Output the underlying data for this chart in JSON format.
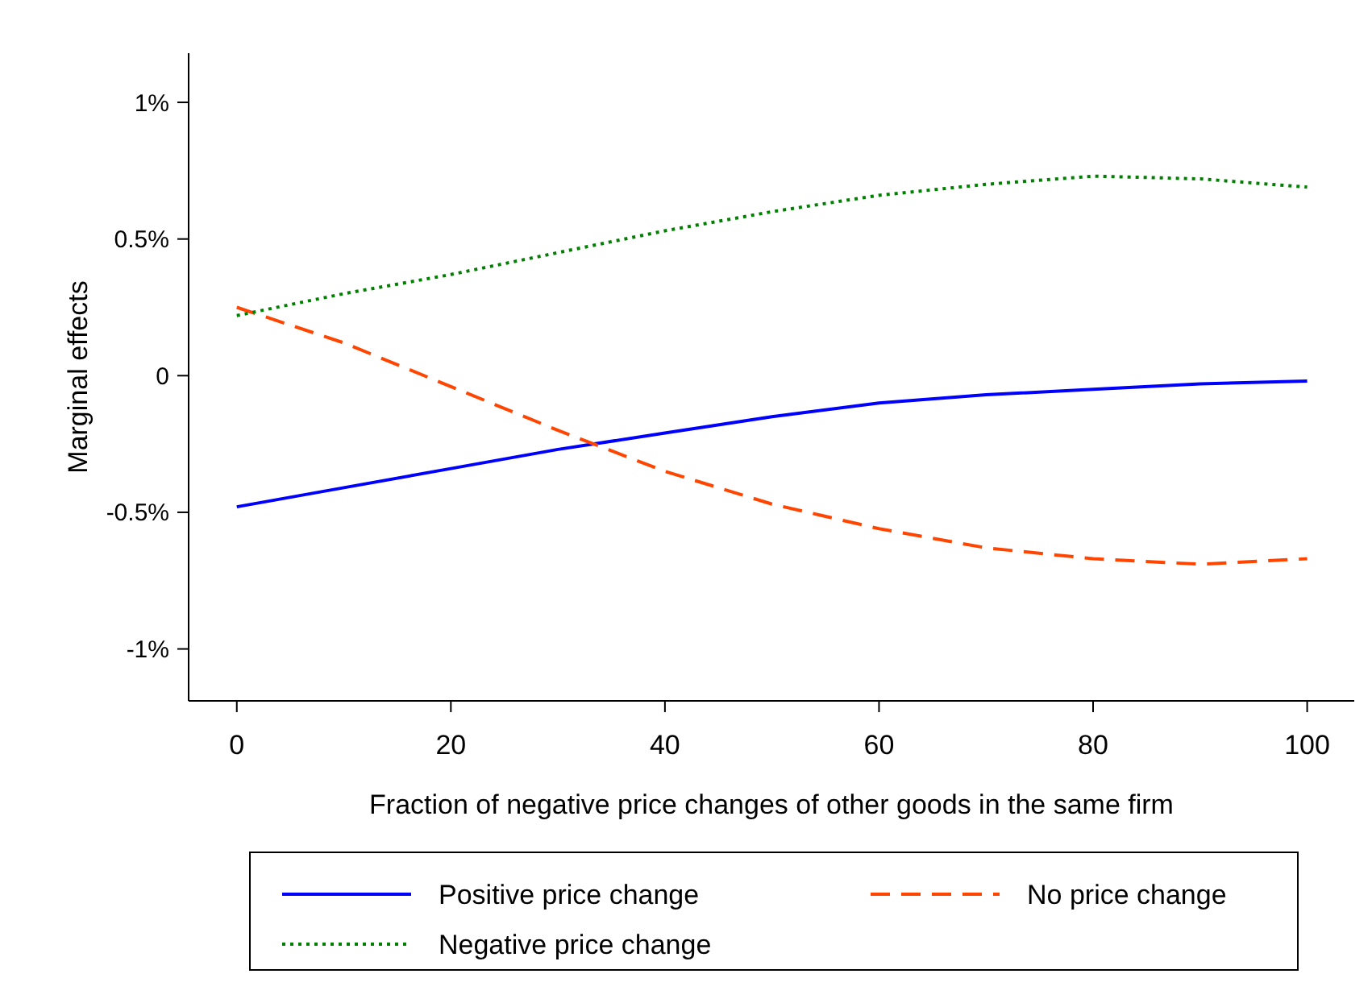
{
  "chart_data": {
    "type": "line",
    "xlabel": "Fraction of negative price changes of other goods in the same firm",
    "ylabel": "Marginal effects",
    "x": [
      0,
      10,
      20,
      30,
      40,
      50,
      60,
      70,
      80,
      90,
      100
    ],
    "xlim": [
      -4.5,
      104.4
    ],
    "xticks": [
      0,
      20,
      40,
      60,
      80,
      100
    ],
    "ylim": [
      -1.19,
      1.18
    ],
    "yticks": [
      {
        "value": -1,
        "label": "-1%"
      },
      {
        "value": -0.5,
        "label": "-0.5%"
      },
      0,
      {
        "value": 0.5,
        "label": "0.5%"
      },
      {
        "value": 1,
        "label": "1%"
      }
    ],
    "grid": false,
    "legend": "bottom",
    "marker": "none",
    "series": [
      {
        "name": "Positive price change",
        "color": "#0000ff",
        "line_style": "solid",
        "values": [
          -0.48,
          -0.41,
          -0.34,
          -0.27,
          -0.21,
          -0.15,
          -0.1,
          -0.07,
          -0.05,
          -0.03,
          -0.02
        ]
      },
      {
        "name": "No price change",
        "color": "#ff4500",
        "line_style": "dashed",
        "values": [
          0.25,
          0.12,
          -0.04,
          -0.2,
          -0.35,
          -0.47,
          -0.56,
          -0.63,
          -0.67,
          -0.69,
          -0.67
        ]
      },
      {
        "name": "Negative price change",
        "color": "#008000",
        "line_style": "dotted",
        "values": [
          0.22,
          0.3,
          0.37,
          0.45,
          0.53,
          0.6,
          0.66,
          0.7,
          0.73,
          0.72,
          0.69
        ]
      }
    ]
  }
}
